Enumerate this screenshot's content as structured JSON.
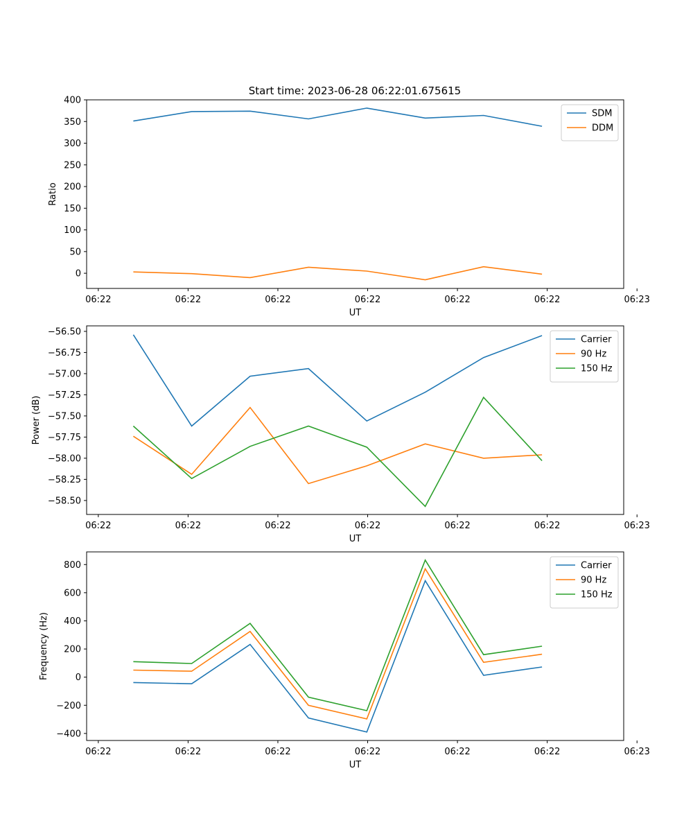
{
  "figure_title": "Start time: 2023-06-28 06:22:01.675615",
  "chart_data": [
    {
      "type": "line",
      "title": "Start time: 2023-06-28 06:22:01.675615",
      "xlabel": "UT",
      "ylabel": "Ratio",
      "x_tick_labels": [
        "06:22",
        "06:22",
        "06:22",
        "06:22",
        "06:22",
        "06:22",
        "06:23"
      ],
      "x": [
        1,
        2,
        3,
        4,
        5,
        6,
        7,
        8
      ],
      "ylim": [
        -35,
        400
      ],
      "y_ticks": [
        0,
        50,
        100,
        150,
        200,
        250,
        300,
        350,
        400
      ],
      "grid": false,
      "legend_position": "top-right",
      "series": [
        {
          "name": "SDM",
          "color": "#1f77b4",
          "values": [
            351,
            373,
            374,
            356,
            381,
            358,
            364,
            339
          ]
        },
        {
          "name": "DDM",
          "color": "#ff7f0e",
          "values": [
            3,
            -1,
            -10,
            14,
            5,
            -15,
            15,
            -2
          ]
        }
      ]
    },
    {
      "type": "line",
      "xlabel": "UT",
      "ylabel": "Power (dB)",
      "x_tick_labels": [
        "06:22",
        "06:22",
        "06:22",
        "06:22",
        "06:22",
        "06:22",
        "06:23"
      ],
      "x": [
        1,
        2,
        3,
        4,
        5,
        6,
        7,
        8
      ],
      "ylim": [
        -58.665,
        -56.435
      ],
      "y_ticks": [
        -58.5,
        -58.25,
        -58.0,
        -57.75,
        -57.5,
        -57.25,
        -57.0,
        -56.75,
        -56.5
      ],
      "y_tick_labels": [
        "−58.50",
        "−58.25",
        "−58.00",
        "−57.75",
        "−57.50",
        "−57.25",
        "−57.00",
        "−56.75",
        "−56.50"
      ],
      "grid": false,
      "legend_position": "top-right",
      "series": [
        {
          "name": "Carrier",
          "color": "#1f77b4",
          "values": [
            -56.54,
            -57.62,
            -57.03,
            -56.94,
            -57.56,
            -57.22,
            -56.81,
            -56.55
          ]
        },
        {
          "name": "90 Hz",
          "color": "#ff7f0e",
          "values": [
            -57.74,
            -58.19,
            -57.4,
            -58.3,
            -58.09,
            -57.83,
            -58.0,
            -57.96
          ]
        },
        {
          "name": "150 Hz",
          "color": "#2ca02c",
          "values": [
            -57.62,
            -58.24,
            -57.86,
            -57.62,
            -57.87,
            -58.57,
            -57.28,
            -58.03
          ]
        }
      ]
    },
    {
      "type": "line",
      "xlabel": "UT",
      "ylabel": "Frequency (Hz)",
      "x_tick_labels": [
        "06:22",
        "06:22",
        "06:22",
        "06:22",
        "06:22",
        "06:22",
        "06:23"
      ],
      "x": [
        1,
        2,
        3,
        4,
        5,
        6,
        7,
        8
      ],
      "ylim": [
        -450,
        890
      ],
      "y_ticks": [
        -400,
        -200,
        0,
        200,
        400,
        600,
        800
      ],
      "y_tick_labels": [
        "−400",
        "−200",
        "0",
        "200",
        "400",
        "600",
        "800"
      ],
      "grid": false,
      "legend_position": "top-right",
      "series": [
        {
          "name": "Carrier",
          "color": "#1f77b4",
          "values": [
            -38,
            -47,
            233,
            -290,
            -390,
            685,
            13,
            72
          ]
        },
        {
          "name": "90 Hz",
          "color": "#ff7f0e",
          "values": [
            50,
            42,
            325,
            -200,
            -297,
            770,
            105,
            163
          ]
        },
        {
          "name": "150 Hz",
          "color": "#2ca02c",
          "values": [
            110,
            97,
            382,
            -142,
            -238,
            832,
            160,
            220
          ]
        }
      ]
    }
  ]
}
